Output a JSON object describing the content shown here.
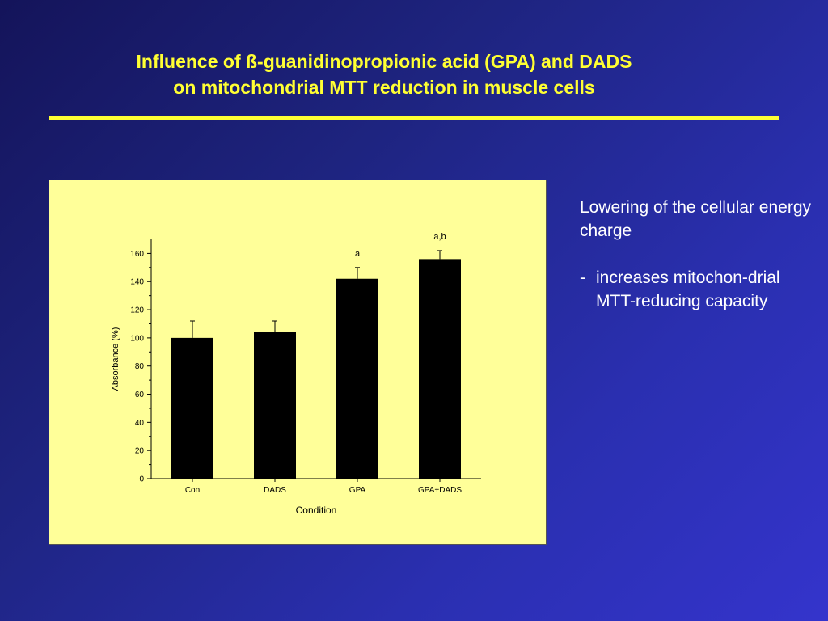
{
  "slide": {
    "title_line1": "Influence of ß-guanidinopropionic acid (GPA) and DADS",
    "title_line2": "on mitochondrial MTT reduction in muscle cells",
    "side_heading": "Lowering of the cellular energy charge",
    "side_bullet_marker": "-",
    "side_bullet_text": "increases mitochon-drial MTT-reducing capacity",
    "colors": {
      "background": "#2a2fb0",
      "title": "#ffff33",
      "chart_panel": "#ffff99",
      "bars": "#000000"
    }
  },
  "chart_data": {
    "type": "bar",
    "categories": [
      "Con",
      "DADS",
      "GPA",
      "GPA+DADS"
    ],
    "values": [
      100,
      104,
      142,
      156
    ],
    "errors": [
      12,
      8,
      8,
      6
    ],
    "annotations": [
      "",
      "",
      "a",
      "a,b"
    ],
    "xlabel": "Condition",
    "ylabel": "Absorbance (%)",
    "ylim": [
      0,
      170
    ],
    "yticks": [
      0,
      20,
      40,
      60,
      80,
      100,
      120,
      140,
      160
    ],
    "grid": false
  }
}
